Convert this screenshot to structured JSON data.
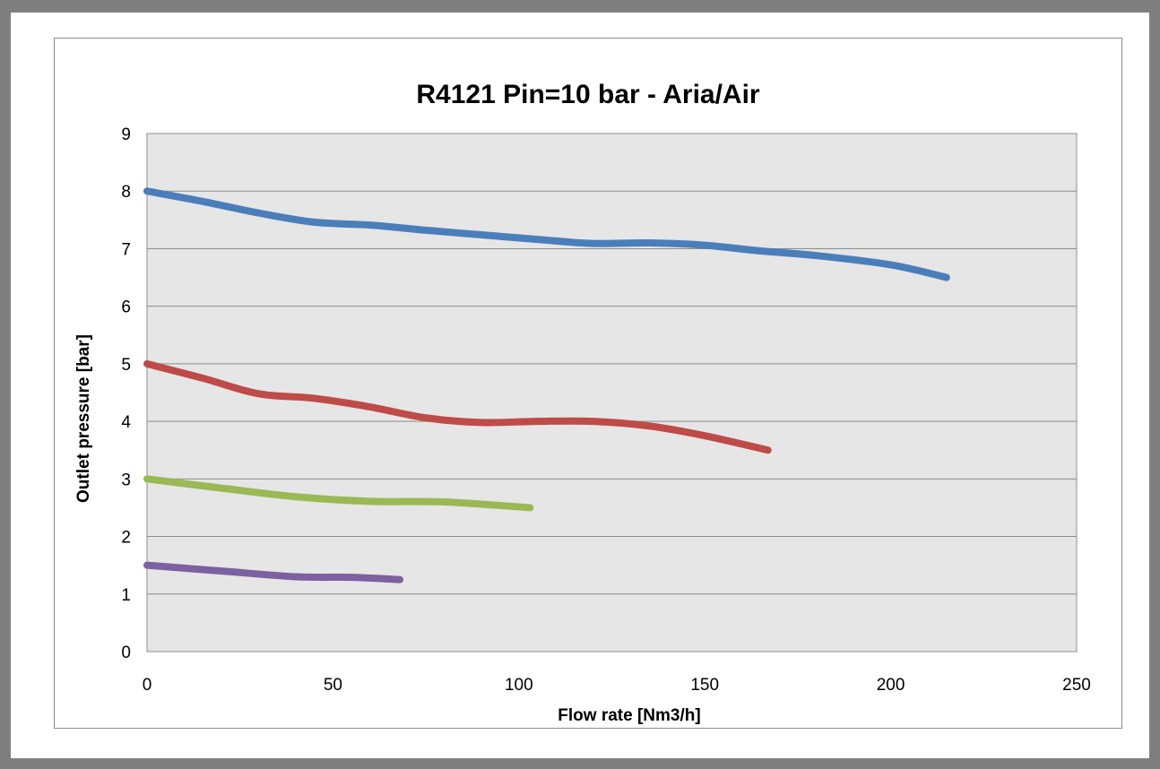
{
  "chart_data": {
    "type": "line",
    "title": "R4121  Pin=10 bar - Aria/Air",
    "xlabel": "Flow  rate [Nm3/h]",
    "ylabel": "Outlet pressure [bar]",
    "xlim": [
      0,
      250
    ],
    "ylim": [
      0,
      9
    ],
    "xticks": [
      0,
      50,
      100,
      150,
      200,
      250
    ],
    "yticks": [
      0,
      1,
      2,
      3,
      4,
      5,
      6,
      7,
      8,
      9
    ],
    "grid": true,
    "legend": "none",
    "plot_background": "#e6e6e6",
    "series": [
      {
        "color": "#4a7ebb",
        "x": [
          0,
          15,
          30,
          45,
          60,
          75,
          90,
          105,
          120,
          135,
          150,
          165,
          180,
          200,
          215
        ],
        "y": [
          8.0,
          7.82,
          7.62,
          7.46,
          7.41,
          7.32,
          7.24,
          7.16,
          7.09,
          7.1,
          7.06,
          6.96,
          6.88,
          6.72,
          6.5
        ]
      },
      {
        "color": "#be4b48",
        "x": [
          0,
          15,
          30,
          45,
          60,
          75,
          90,
          105,
          120,
          135,
          150,
          167
        ],
        "y": [
          5.0,
          4.75,
          4.48,
          4.4,
          4.25,
          4.06,
          3.98,
          4.0,
          4.0,
          3.92,
          3.75,
          3.5
        ]
      },
      {
        "color": "#98b954",
        "x": [
          0,
          20,
          40,
          60,
          80,
          103
        ],
        "y": [
          3.0,
          2.84,
          2.69,
          2.61,
          2.6,
          2.5
        ]
      },
      {
        "color": "#7d60a0",
        "x": [
          0,
          20,
          40,
          55,
          68
        ],
        "y": [
          1.5,
          1.4,
          1.3,
          1.29,
          1.25
        ]
      }
    ]
  }
}
